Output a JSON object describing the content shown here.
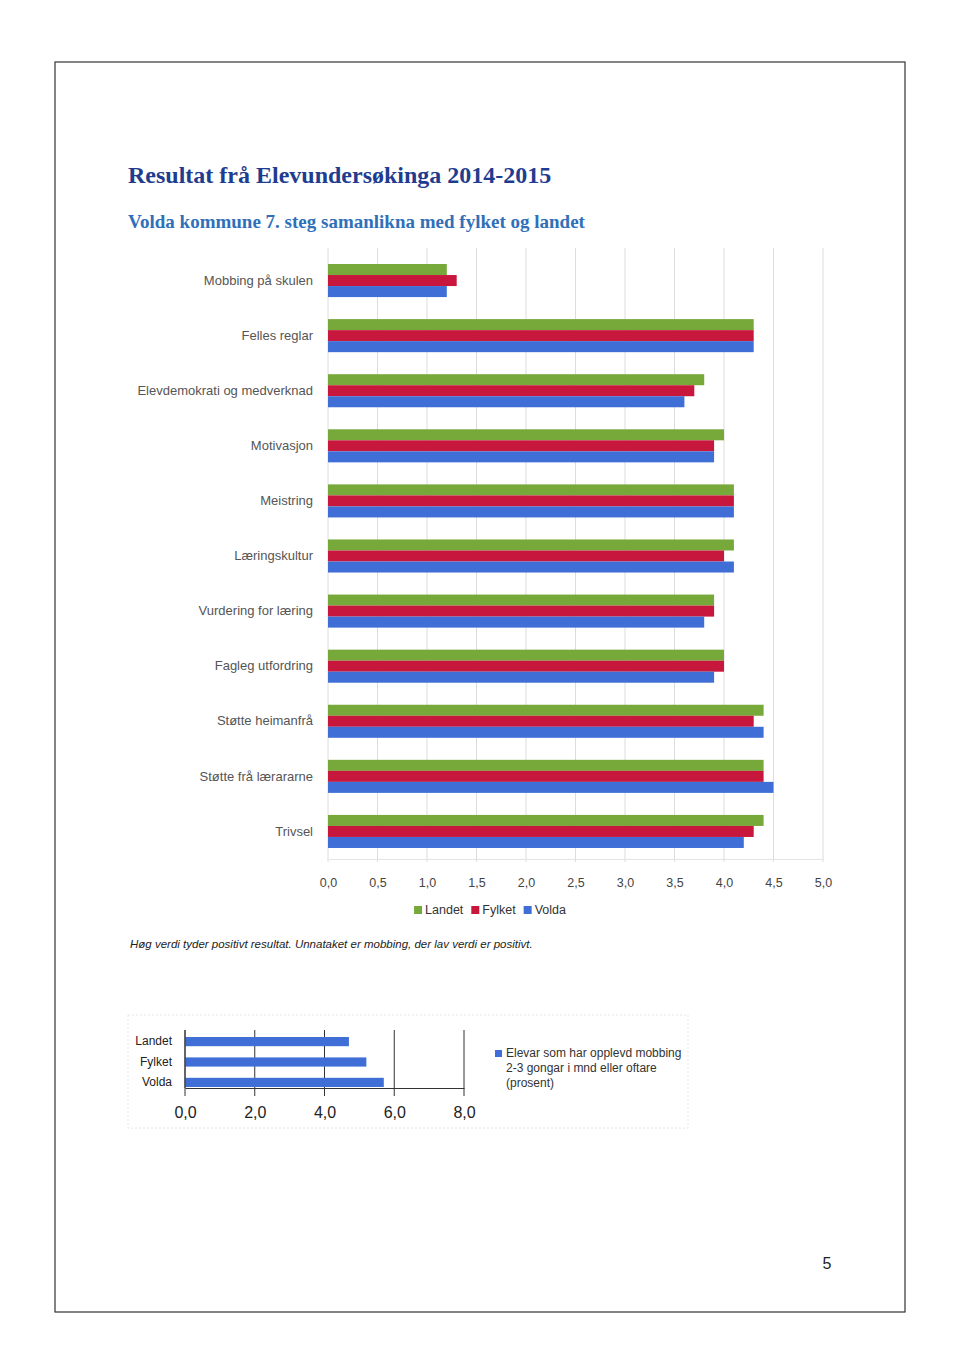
{
  "page_number": 5,
  "chart_data": [
    {
      "type": "bar",
      "orientation": "horizontal",
      "title": "Resultat frå Elevundersøkinga 2014-2015",
      "subtitle": "Volda kommune 7. steg samanlikna med fylket og landet",
      "annotations": [
        "Høg verdi tyder positivt resultat. Unnataket er mobbing, der lav verdi er positivt."
      ],
      "categories": [
        "Mobbing på skulen",
        "Felles reglar",
        "Elevdemokrati og medverknad",
        "Motivasjon",
        "Meistring",
        "Læringskultur",
        "Vurdering for læring",
        "Fagleg utfordring",
        "Støtte heimanfrå",
        "Støtte frå lærararne",
        "Trivsel"
      ],
      "series": [
        {
          "name": "Landet",
          "color": "#76a83a",
          "values": [
            1.2,
            4.3,
            3.8,
            4.0,
            4.1,
            4.1,
            3.9,
            4.0,
            4.4,
            4.4,
            4.4
          ]
        },
        {
          "name": "Fylket",
          "color": "#c8173c",
          "values": [
            1.3,
            4.3,
            3.7,
            3.9,
            4.1,
            4.0,
            3.9,
            4.0,
            4.3,
            4.4,
            4.3
          ]
        },
        {
          "name": "Volda",
          "color": "#3f6fd6",
          "values": [
            1.2,
            4.3,
            3.6,
            3.9,
            4.1,
            4.1,
            3.8,
            3.9,
            4.4,
            4.5,
            4.2
          ]
        }
      ],
      "xlim": [
        0,
        5
      ],
      "xticks": [
        {
          "value": 0,
          "label": "0,0"
        },
        {
          "value": 0.5,
          "label": "0,5"
        },
        {
          "value": 1,
          "label": "1,0"
        },
        {
          "value": 1.5,
          "label": "1,5"
        },
        {
          "value": 2,
          "label": "2,0"
        },
        {
          "value": 2.5,
          "label": "2,5"
        },
        {
          "value": 3,
          "label": "3,0"
        },
        {
          "value": 3.5,
          "label": "3,5"
        },
        {
          "value": 4,
          "label": "4,0"
        },
        {
          "value": 4.5,
          "label": "4,5"
        },
        {
          "value": 5,
          "label": "5,0"
        }
      ],
      "grid": true,
      "legend": "bottom"
    },
    {
      "type": "bar",
      "orientation": "horizontal",
      "categories": [
        "Landet",
        "Fylket",
        "Volda"
      ],
      "series": [
        {
          "name": "Elevar som har opplevd mobbing 2-3 gongar i mnd eller oftare (prosent)",
          "color": "#3f6fd6",
          "values": [
            4.7,
            5.2,
            5.7
          ]
        }
      ],
      "xlim": [
        0,
        8
      ],
      "xticks": [
        {
          "value": 0,
          "label": "0,0"
        },
        {
          "value": 2,
          "label": "2,0"
        },
        {
          "value": 4,
          "label": "4,0"
        },
        {
          "value": 6,
          "label": "6,0"
        },
        {
          "value": 8,
          "label": "8,0"
        }
      ],
      "grid": true,
      "legend": "right"
    }
  ]
}
